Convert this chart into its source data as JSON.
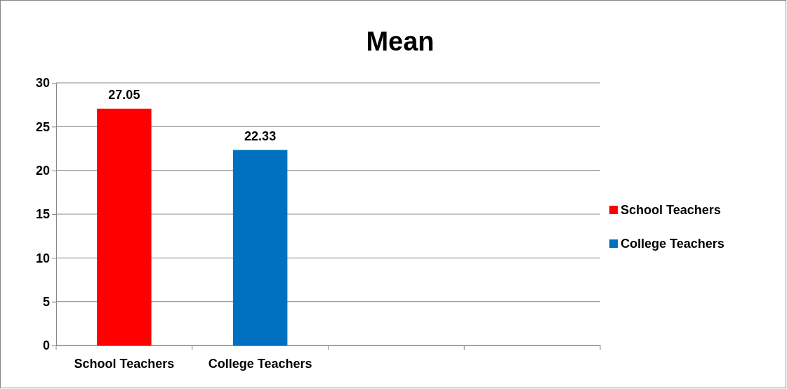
{
  "chart_data": {
    "type": "bar",
    "title": "Mean",
    "categories": [
      "School Teachers",
      "College Teachers",
      null,
      null
    ],
    "series": [
      {
        "name": "School Teachers",
        "color": "#ff0000",
        "values": [
          27.05,
          null,
          null,
          null
        ]
      },
      {
        "name": "College Teachers",
        "color": "#0070c0",
        "values": [
          null,
          22.33,
          null,
          null
        ]
      }
    ],
    "ylim": [
      0,
      30
    ],
    "yticks": [
      0,
      5,
      10,
      15,
      20,
      25,
      30
    ],
    "grid": "y",
    "legend": "right",
    "data_labels": true
  }
}
